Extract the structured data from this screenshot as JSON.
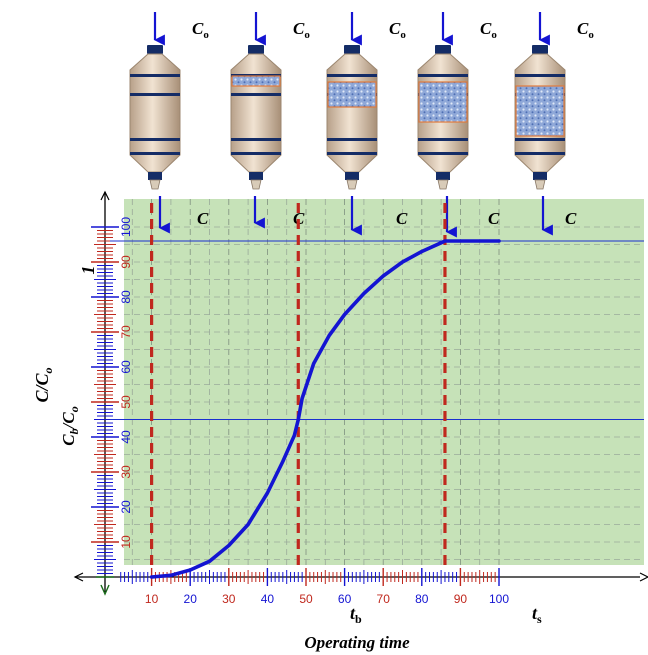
{
  "figure": {
    "inlet_label": "C",
    "inlet_subscript": "o",
    "outlet_label": "C",
    "y_axis_label_main": "C/C",
    "y_axis_label_sub": "o",
    "y_axis_one_label": "1",
    "breakthrough_label_main": "C",
    "breakthrough_label_sub1": "b",
    "breakthrough_label_slash": "/C",
    "breakthrough_label_sub2": "o",
    "t_b_main": "t",
    "t_b_sub": "b",
    "t_s_main": "t",
    "t_s_sub": "s",
    "x_axis_title": "Operating time",
    "column_fill_fractions": [
      0,
      0.2,
      0.5,
      0.8,
      1.0
    ]
  },
  "chart_data": {
    "type": "line",
    "x_ticks": [
      "10",
      "20",
      "30",
      "40",
      "50",
      "60",
      "70",
      "80",
      "90",
      "100"
    ],
    "y_ticks": [
      "10",
      "20",
      "30",
      "40",
      "50",
      "60",
      "70",
      "80",
      "90",
      "100"
    ],
    "xlim": [
      0,
      105
    ],
    "ylim": [
      0,
      105
    ],
    "grid": true,
    "series": [
      {
        "x": [
          10,
          15,
          20,
          25,
          30,
          35,
          40,
          44,
          47,
          48,
          49,
          52,
          56,
          60,
          65,
          70,
          75,
          80,
          85,
          86,
          90,
          95,
          100
        ],
        "y": [
          0,
          0.5,
          2,
          4.5,
          9,
          15,
          24,
          33,
          40.5,
          45,
          51,
          61,
          69,
          75,
          81,
          86,
          90,
          93,
          95.5,
          96,
          96,
          96,
          96
        ],
        "color": "#1414d2"
      }
    ],
    "horizontal_lines": [
      96,
      45
    ],
    "vertical_markers": [
      10,
      48,
      86
    ],
    "marker_color": "#c0281e",
    "plot_background": "#c6e2b8",
    "curve_color": "#1414d2"
  }
}
